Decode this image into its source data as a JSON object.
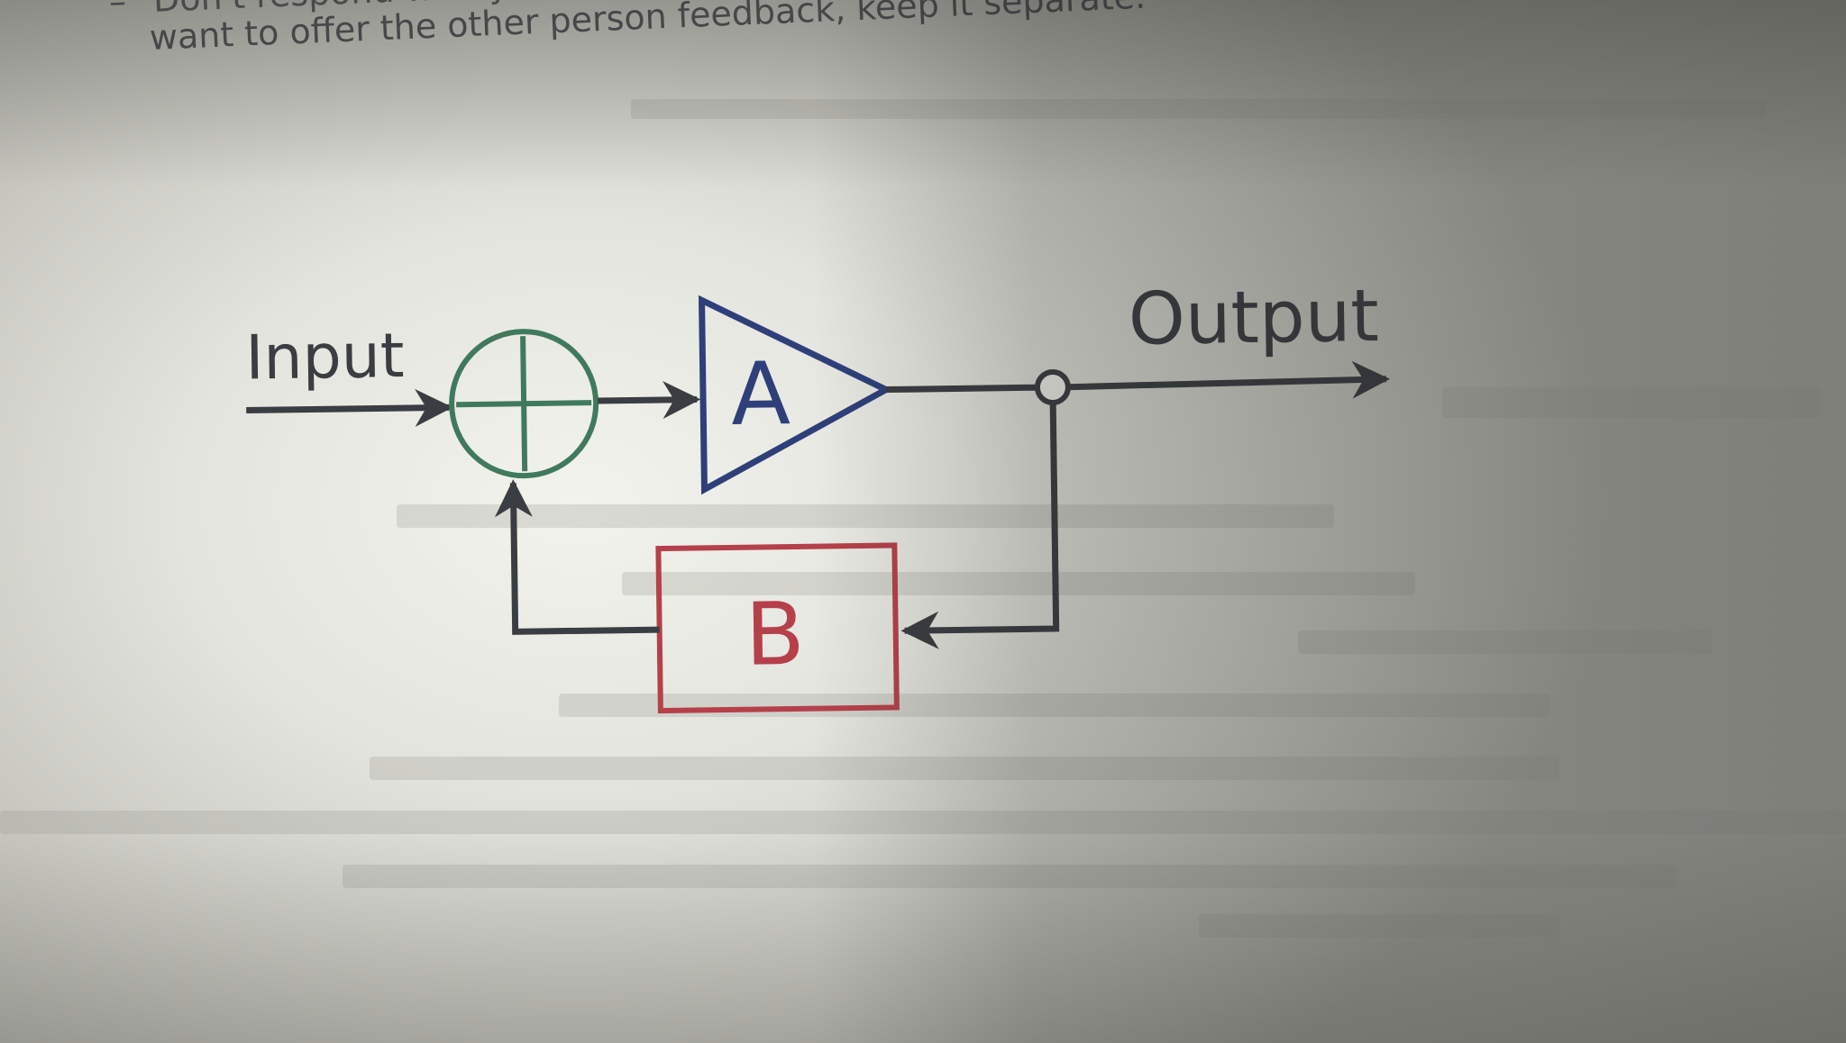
{
  "page": {
    "bullet": "–",
    "top_line": "Don't respond with your own feedback, keep it separate",
    "second_line": "want to offer the other person feedback, keep it separate."
  },
  "diagram": {
    "input_label": "Input",
    "output_label": "Output",
    "amplifier_label": "A",
    "feedback_label": "B",
    "colors": {
      "line": "#3a3d42",
      "summer": "#3f7a5c",
      "amplifier": "#2e3f7a",
      "feedback": "#b5404a"
    }
  }
}
